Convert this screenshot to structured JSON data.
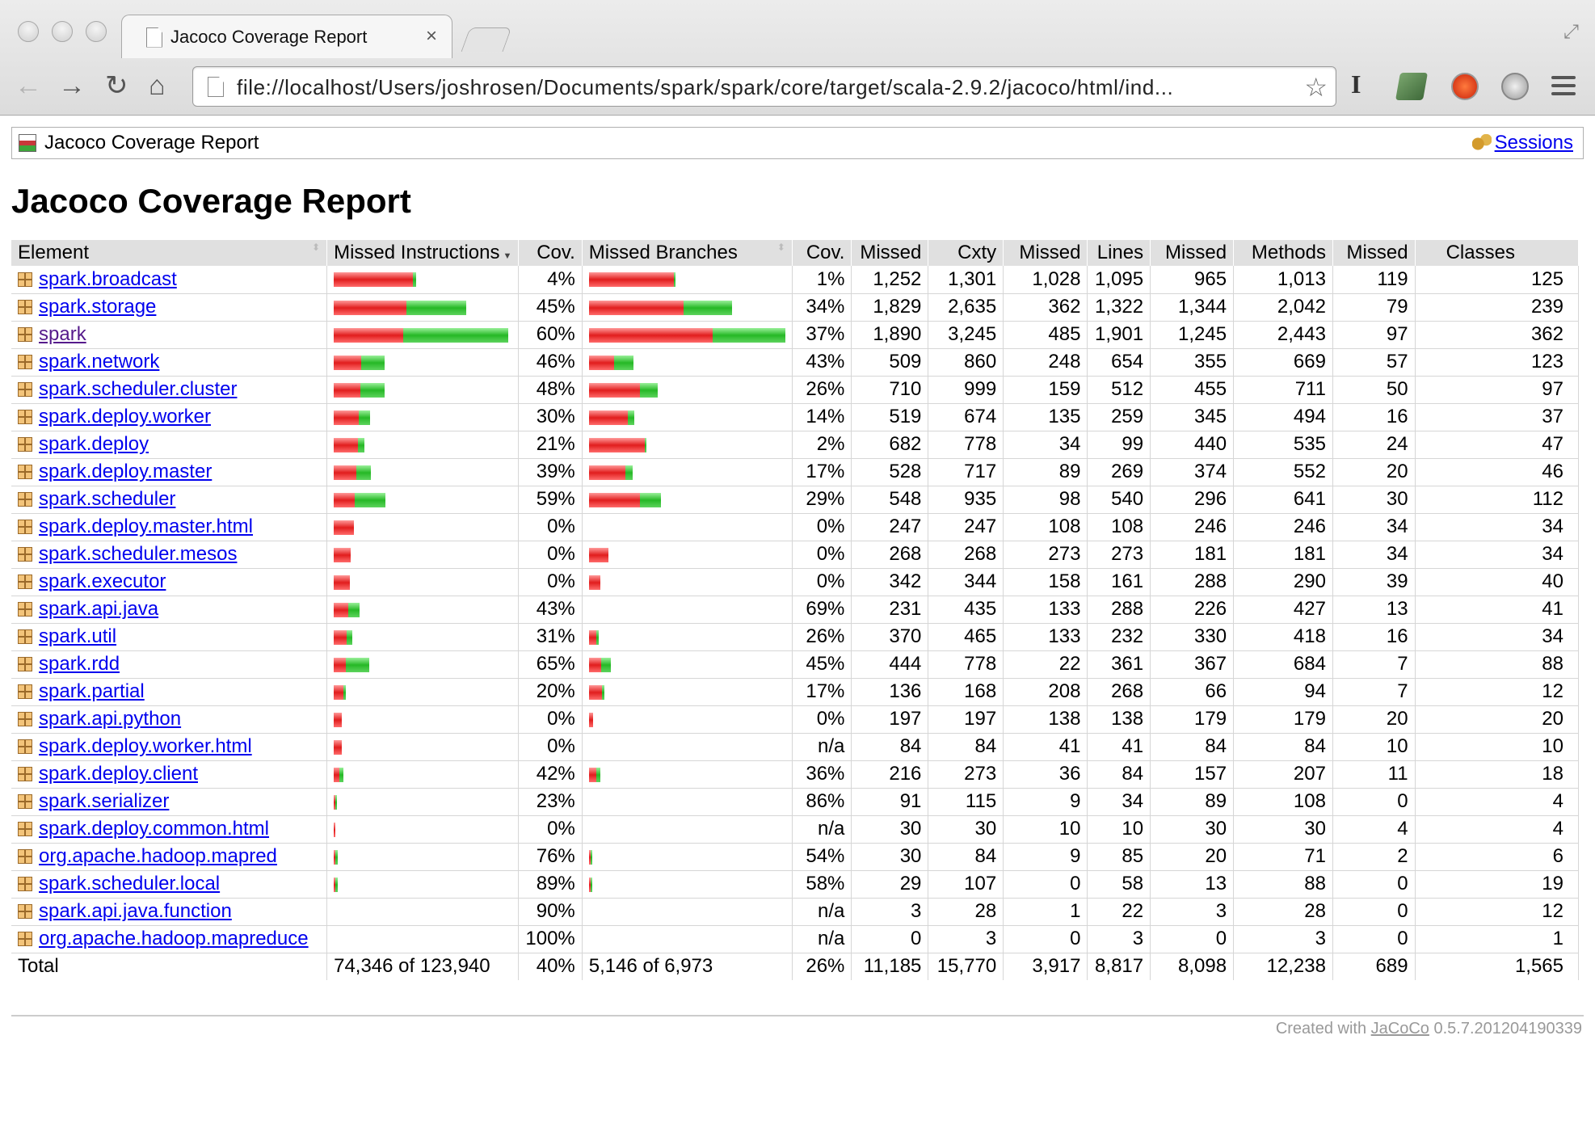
{
  "browser": {
    "tab_title": "Jacoco Coverage Report",
    "tab_close": "×",
    "url": "file://localhost/Users/joshrosen/Documents/spark/spark/core/target/scala-2.9.2/jacoco/html/ind...",
    "icons": [
      "back-icon",
      "forward-icon",
      "reload-icon",
      "home-icon",
      "bookmark-star-icon",
      "menu-icon"
    ]
  },
  "breadcrumb": {
    "title": "Jacoco Coverage Report",
    "sessions_label": "Sessions"
  },
  "page_title": "Jacoco Coverage Report",
  "table": {
    "headers": [
      "Element",
      "Missed Instructions",
      "Cov.",
      "Missed Branches",
      "Cov.",
      "Missed",
      "Cxty",
      "Missed",
      "Lines",
      "Missed",
      "Methods",
      "Missed",
      "Classes"
    ],
    "max_instructions": 3245,
    "max_branches": 1480,
    "rows": [
      {
        "name": "spark.broadcast",
        "instr_missed": 1850,
        "instr_covered": 77,
        "instr_cov": "4%",
        "br_missed": 900,
        "br_covered": 9,
        "br_cov": "1%",
        "cx_missed": "1,252",
        "cxty": "1,301",
        "l_missed": "1,028",
        "lines": "1,095",
        "m_missed": "965",
        "methods": "1,013",
        "c_missed": "119",
        "classes": "125"
      },
      {
        "name": "spark.storage",
        "instr_missed": 1700,
        "instr_covered": 1390,
        "instr_cov": "45%",
        "br_missed": 1010,
        "br_covered": 520,
        "br_cov": "34%",
        "cx_missed": "1,829",
        "cxty": "2,635",
        "l_missed": "362",
        "lines": "1,322",
        "m_missed": "1,344",
        "methods": "2,042",
        "c_missed": "79",
        "classes": "239"
      },
      {
        "name": "spark",
        "instr_missed": 1630,
        "instr_covered": 2445,
        "instr_cov": "60%",
        "br_missed": 1320,
        "br_covered": 775,
        "br_cov": "37%",
        "cx_missed": "1,890",
        "cxty": "3,245",
        "l_missed": "485",
        "lines": "1,901",
        "m_missed": "1,245",
        "methods": "2,443",
        "c_missed": "97",
        "classes": "362",
        "visited": true
      },
      {
        "name": "spark.network",
        "instr_missed": 650,
        "instr_covered": 555,
        "instr_cov": "46%",
        "br_missed": 270,
        "br_covered": 205,
        "br_cov": "43%",
        "cx_missed": "509",
        "cxty": "860",
        "l_missed": "248",
        "lines": "654",
        "m_missed": "355",
        "methods": "669",
        "c_missed": "57",
        "classes": "123"
      },
      {
        "name": "spark.scheduler.cluster",
        "instr_missed": 620,
        "instr_covered": 575,
        "instr_cov": "48%",
        "br_missed": 545,
        "br_covered": 190,
        "br_cov": "26%",
        "cx_missed": "710",
        "cxty": "999",
        "l_missed": "159",
        "lines": "512",
        "m_missed": "455",
        "methods": "711",
        "c_missed": "50",
        "classes": "97"
      },
      {
        "name": "spark.deploy.worker",
        "instr_missed": 590,
        "instr_covered": 255,
        "instr_cov": "30%",
        "br_missed": 410,
        "br_covered": 65,
        "br_cov": "14%",
        "cx_missed": "519",
        "cxty": "674",
        "l_missed": "135",
        "lines": "259",
        "m_missed": "345",
        "methods": "494",
        "c_missed": "16",
        "classes": "37"
      },
      {
        "name": "spark.deploy",
        "instr_missed": 560,
        "instr_covered": 145,
        "instr_cov": "21%",
        "br_missed": 590,
        "br_covered": 12,
        "br_cov": "2%",
        "cx_missed": "682",
        "cxty": "778",
        "l_missed": "34",
        "lines": "99",
        "m_missed": "440",
        "methods": "535",
        "c_missed": "24",
        "classes": "47"
      },
      {
        "name": "spark.deploy.master",
        "instr_missed": 520,
        "instr_covered": 335,
        "instr_cov": "39%",
        "br_missed": 390,
        "br_covered": 80,
        "br_cov": "17%",
        "cx_missed": "528",
        "cxty": "717",
        "l_missed": "89",
        "lines": "269",
        "m_missed": "374",
        "methods": "552",
        "c_missed": "20",
        "classes": "46"
      },
      {
        "name": "spark.scheduler",
        "instr_missed": 490,
        "instr_covered": 710,
        "instr_cov": "59%",
        "br_missed": 545,
        "br_covered": 225,
        "br_cov": "29%",
        "cx_missed": "548",
        "cxty": "935",
        "l_missed": "98",
        "lines": "540",
        "m_missed": "296",
        "methods": "641",
        "c_missed": "30",
        "classes": "112"
      },
      {
        "name": "spark.deploy.master.html",
        "instr_missed": 470,
        "instr_covered": 0,
        "instr_cov": "0%",
        "br_missed": 0,
        "br_covered": 0,
        "br_cov": "0%",
        "cx_missed": "247",
        "cxty": "247",
        "l_missed": "108",
        "lines": "108",
        "m_missed": "246",
        "methods": "246",
        "c_missed": "34",
        "classes": "34"
      },
      {
        "name": "spark.scheduler.mesos",
        "instr_missed": 400,
        "instr_covered": 0,
        "instr_cov": "0%",
        "br_missed": 210,
        "br_covered": 0,
        "br_cov": "0%",
        "cx_missed": "268",
        "cxty": "268",
        "l_missed": "273",
        "lines": "273",
        "m_missed": "181",
        "methods": "181",
        "c_missed": "34",
        "classes": "34"
      },
      {
        "name": "spark.executor",
        "instr_missed": 375,
        "instr_covered": 0,
        "instr_cov": "0%",
        "br_missed": 120,
        "br_covered": 0,
        "br_cov": "0%",
        "cx_missed": "342",
        "cxty": "344",
        "l_missed": "158",
        "lines": "161",
        "m_missed": "288",
        "methods": "290",
        "c_missed": "39",
        "classes": "40"
      },
      {
        "name": "spark.api.java",
        "instr_missed": 340,
        "instr_covered": 255,
        "instr_cov": "43%",
        "br_missed": 0,
        "br_covered": 0,
        "br_cov": "69%",
        "cx_missed": "231",
        "cxty": "435",
        "l_missed": "133",
        "lines": "288",
        "m_missed": "226",
        "methods": "427",
        "c_missed": "13",
        "classes": "41"
      },
      {
        "name": "spark.util",
        "instr_missed": 300,
        "instr_covered": 135,
        "instr_cov": "31%",
        "br_missed": 80,
        "br_covered": 25,
        "br_cov": "26%",
        "cx_missed": "370",
        "cxty": "465",
        "l_missed": "133",
        "lines": "232",
        "m_missed": "330",
        "methods": "418",
        "c_missed": "16",
        "classes": "34"
      },
      {
        "name": "spark.rdd",
        "instr_missed": 290,
        "instr_covered": 545,
        "instr_cov": "65%",
        "br_missed": 125,
        "br_covered": 100,
        "br_cov": "45%",
        "cx_missed": "444",
        "cxty": "778",
        "l_missed": "22",
        "lines": "361",
        "m_missed": "367",
        "methods": "684",
        "c_missed": "7",
        "classes": "88"
      },
      {
        "name": "spark.partial",
        "instr_missed": 225,
        "instr_covered": 57,
        "instr_cov": "20%",
        "br_missed": 140,
        "br_covered": 28,
        "br_cov": "17%",
        "cx_missed": "136",
        "cxty": "168",
        "l_missed": "208",
        "lines": "268",
        "m_missed": "66",
        "methods": "94",
        "c_missed": "7",
        "classes": "12"
      },
      {
        "name": "spark.api.python",
        "instr_missed": 190,
        "instr_covered": 0,
        "instr_cov": "0%",
        "br_missed": 40,
        "br_covered": 0,
        "br_cov": "0%",
        "cx_missed": "197",
        "cxty": "197",
        "l_missed": "138",
        "lines": "138",
        "m_missed": "179",
        "methods": "179",
        "c_missed": "20",
        "classes": "20"
      },
      {
        "name": "spark.deploy.worker.html",
        "instr_missed": 185,
        "instr_covered": 0,
        "instr_cov": "0%",
        "br_missed": 0,
        "br_covered": 0,
        "br_cov": "n/a",
        "cx_missed": "84",
        "cxty": "84",
        "l_missed": "41",
        "lines": "41",
        "m_missed": "84",
        "methods": "84",
        "c_missed": "10",
        "classes": "10"
      },
      {
        "name": "spark.deploy.client",
        "instr_missed": 140,
        "instr_covered": 100,
        "instr_cov": "42%",
        "br_missed": 80,
        "br_covered": 45,
        "br_cov": "36%",
        "cx_missed": "216",
        "cxty": "273",
        "l_missed": "36",
        "lines": "84",
        "m_missed": "157",
        "methods": "207",
        "c_missed": "11",
        "classes": "18"
      },
      {
        "name": "spark.serializer",
        "instr_missed": 45,
        "instr_covered": 13,
        "instr_cov": "23%",
        "br_missed": 0,
        "br_covered": 0,
        "br_cov": "86%",
        "cx_missed": "91",
        "cxty": "115",
        "l_missed": "9",
        "lines": "34",
        "m_missed": "89",
        "methods": "108",
        "c_missed": "0",
        "classes": "4"
      },
      {
        "name": "spark.deploy.common.html",
        "instr_missed": 40,
        "instr_covered": 0,
        "instr_cov": "0%",
        "br_missed": 0,
        "br_covered": 0,
        "br_cov": "n/a",
        "cx_missed": "30",
        "cxty": "30",
        "l_missed": "10",
        "lines": "10",
        "m_missed": "30",
        "methods": "30",
        "c_missed": "4",
        "classes": "4"
      },
      {
        "name": "org.apache.hadoop.mapred",
        "instr_missed": 15,
        "instr_covered": 50,
        "instr_cov": "76%",
        "br_missed": 3,
        "br_covered": 5,
        "br_cov": "54%",
        "cx_missed": "30",
        "cxty": "84",
        "l_missed": "9",
        "lines": "85",
        "m_missed": "20",
        "methods": "71",
        "c_missed": "2",
        "classes": "6"
      },
      {
        "name": "spark.scheduler.local",
        "instr_missed": 8,
        "instr_covered": 65,
        "instr_cov": "89%",
        "br_missed": 12,
        "br_covered": 6,
        "br_cov": "58%",
        "cx_missed": "29",
        "cxty": "107",
        "l_missed": "0",
        "lines": "58",
        "m_missed": "13",
        "methods": "88",
        "c_missed": "0",
        "classes": "19"
      },
      {
        "name": "spark.api.java.function",
        "instr_missed": 0,
        "instr_covered": 0,
        "instr_cov": "90%",
        "br_missed": 0,
        "br_covered": 0,
        "br_cov": "n/a",
        "cx_missed": "3",
        "cxty": "28",
        "l_missed": "1",
        "lines": "22",
        "m_missed": "3",
        "methods": "28",
        "c_missed": "0",
        "classes": "12"
      },
      {
        "name": "org.apache.hadoop.mapreduce",
        "instr_missed": 0,
        "instr_covered": 0,
        "instr_cov": "100%",
        "br_missed": 0,
        "br_covered": 0,
        "br_cov": "n/a",
        "cx_missed": "0",
        "cxty": "3",
        "l_missed": "0",
        "lines": "3",
        "m_missed": "0",
        "methods": "3",
        "c_missed": "0",
        "classes": "1"
      }
    ],
    "total": {
      "label": "Total",
      "instr": "74,346 of 123,940",
      "instr_cov": "40%",
      "br": "5,146 of 6,973",
      "br_cov": "26%",
      "cx_missed": "11,185",
      "cxty": "15,770",
      "l_missed": "3,917",
      "lines": "8,817",
      "m_missed": "8,098",
      "methods": "12,238",
      "c_missed": "689",
      "classes": "1,565"
    }
  },
  "footer": {
    "prefix": "Created with",
    "link": "JaCoCo",
    "version": "0.5.7.201204190339"
  },
  "colors": {
    "missed": "#e11d1d",
    "covered": "#26b826",
    "header_bg": "#e0e0e0",
    "link": "#0000ee"
  }
}
